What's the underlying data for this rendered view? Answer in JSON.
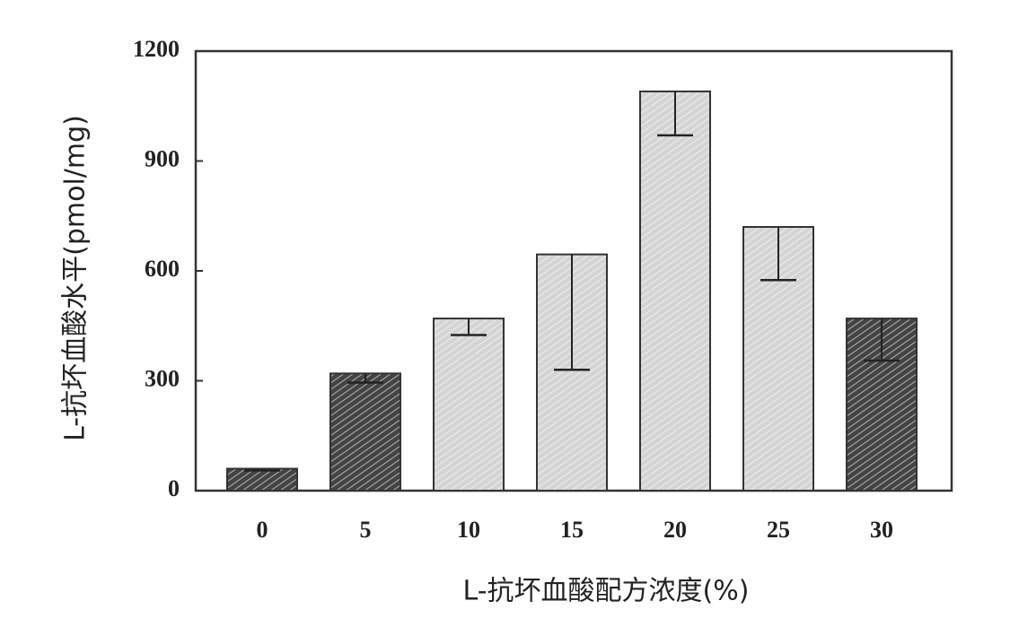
{
  "chart_data": {
    "type": "bar",
    "x_label": "L-抗坏血酸配方浓度(%)",
    "y_label": "L-抗坏血酸水平(pmol/mg)",
    "categories": [
      "0",
      "5",
      "10",
      "15",
      "20",
      "25",
      "30"
    ],
    "values": [
      60,
      320,
      470,
      645,
      1090,
      720,
      470
    ],
    "errors": [
      5,
      25,
      45,
      315,
      120,
      145,
      115
    ],
    "colors": [
      "#444444",
      "#444444",
      "#d4d4d4",
      "#d4d4d4",
      "#d4d4d4",
      "#d4d4d4",
      "#444444"
    ],
    "ylim": [
      0,
      1200
    ],
    "yticks": [
      0,
      300,
      600,
      900,
      1200
    ],
    "grid": false
  }
}
